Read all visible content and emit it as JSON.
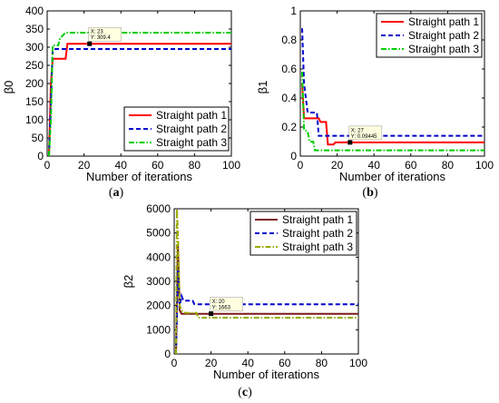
{
  "chart_data": [
    {
      "type": "line",
      "panel_label": "a",
      "xlabel": "Number of iterations",
      "ylabel": "β0",
      "xlim": [
        0,
        100
      ],
      "ylim": [
        0,
        400
      ],
      "xticks": [
        0,
        20,
        40,
        60,
        80,
        100
      ],
      "yticks": [
        0,
        50,
        100,
        150,
        200,
        250,
        300,
        350,
        400
      ],
      "legend_position": "bottom-right",
      "series": [
        {
          "name": "Straight path 1",
          "color": "#ff0000",
          "dash": "solid",
          "x": [
            1,
            2,
            3,
            5,
            6,
            10,
            11,
            100
          ],
          "y": [
            0,
            200,
            268,
            268,
            268,
            268,
            309.4,
            309.4
          ]
        },
        {
          "name": "Straight path 2",
          "color": "#0000cc",
          "dash": "dashed",
          "x": [
            1,
            2,
            3,
            100
          ],
          "y": [
            0,
            150,
            295,
            295
          ]
        },
        {
          "name": "Straight path 3",
          "color": "#00cc00",
          "dash": "dashdot",
          "x": [
            1,
            2,
            3,
            6,
            7,
            10,
            100
          ],
          "y": [
            0,
            100,
            305,
            305,
            325,
            340,
            340
          ]
        }
      ],
      "datatip": {
        "x": 23,
        "y": 309.4,
        "line1": "X: 23",
        "line2": "Y: 309.4"
      }
    },
    {
      "type": "line",
      "panel_label": "b",
      "xlabel": "Number of iterations",
      "ylabel": "β1",
      "xlim": [
        0,
        100
      ],
      "ylim": [
        0,
        1
      ],
      "xticks": [
        0,
        20,
        40,
        60,
        80,
        100
      ],
      "yticks": [
        0,
        0.2,
        0.4,
        0.6,
        0.8,
        1
      ],
      "legend_position": "top-right",
      "series": [
        {
          "name": "Straight path 1",
          "color": "#ff0000",
          "dash": "solid",
          "x": [
            1,
            2,
            10,
            11,
            14,
            15,
            18,
            19,
            100
          ],
          "y": [
            0.5,
            0.26,
            0.26,
            0.235,
            0.235,
            0.08,
            0.08,
            0.09445,
            0.09445
          ]
        },
        {
          "name": "Straight path 2",
          "color": "#0000cc",
          "dash": "dashed",
          "x": [
            1,
            2,
            4,
            5,
            9,
            10,
            100
          ],
          "y": [
            0.88,
            0.5,
            0.3,
            0.3,
            0.3,
            0.14,
            0.14
          ]
        },
        {
          "name": "Straight path 3",
          "color": "#00cc00",
          "dash": "dashdot",
          "x": [
            1,
            2,
            4,
            5,
            7,
            8,
            100
          ],
          "y": [
            0.58,
            0.18,
            0.17,
            0.1,
            0.1,
            0.04,
            0.04
          ]
        }
      ],
      "datatip": {
        "x": 27,
        "y": 0.09445,
        "line1": "X: 27",
        "line2": "Y: 0.09445"
      }
    },
    {
      "type": "line",
      "panel_label": "c",
      "xlabel": "Number of iterations",
      "ylabel": "β2",
      "xlim": [
        0,
        100
      ],
      "ylim": [
        0,
        6000
      ],
      "xticks": [
        0,
        20,
        40,
        60,
        80,
        100
      ],
      "yticks": [
        0,
        1000,
        2000,
        3000,
        4000,
        5000,
        6000
      ],
      "legend_position": "top-right",
      "series": [
        {
          "name": "Straight path 1",
          "color": "#7a1a1a",
          "dash": "solid",
          "x": [
            1,
            2,
            3,
            4,
            100
          ],
          "y": [
            0,
            4500,
            1800,
            1663,
            1663
          ]
        },
        {
          "name": "Straight path 2",
          "color": "#0000cc",
          "dash": "dashed",
          "x": [
            1,
            2,
            3,
            4,
            5,
            10,
            11,
            100
          ],
          "y": [
            0,
            3500,
            2000,
            2400,
            2200,
            2200,
            2050,
            2050
          ]
        },
        {
          "name": "Straight path 3",
          "color": "#99aa00",
          "dash": "dashdot",
          "x": [
            1,
            1.5,
            2,
            3,
            4,
            6,
            12,
            13,
            100
          ],
          "y": [
            0,
            6000,
            5000,
            2000,
            1800,
            1700,
            1700,
            1500,
            1500
          ]
        }
      ],
      "datatip": {
        "x": 20,
        "y": 1663,
        "line1": "X: 20",
        "line2": "Y: 1663"
      }
    }
  ]
}
